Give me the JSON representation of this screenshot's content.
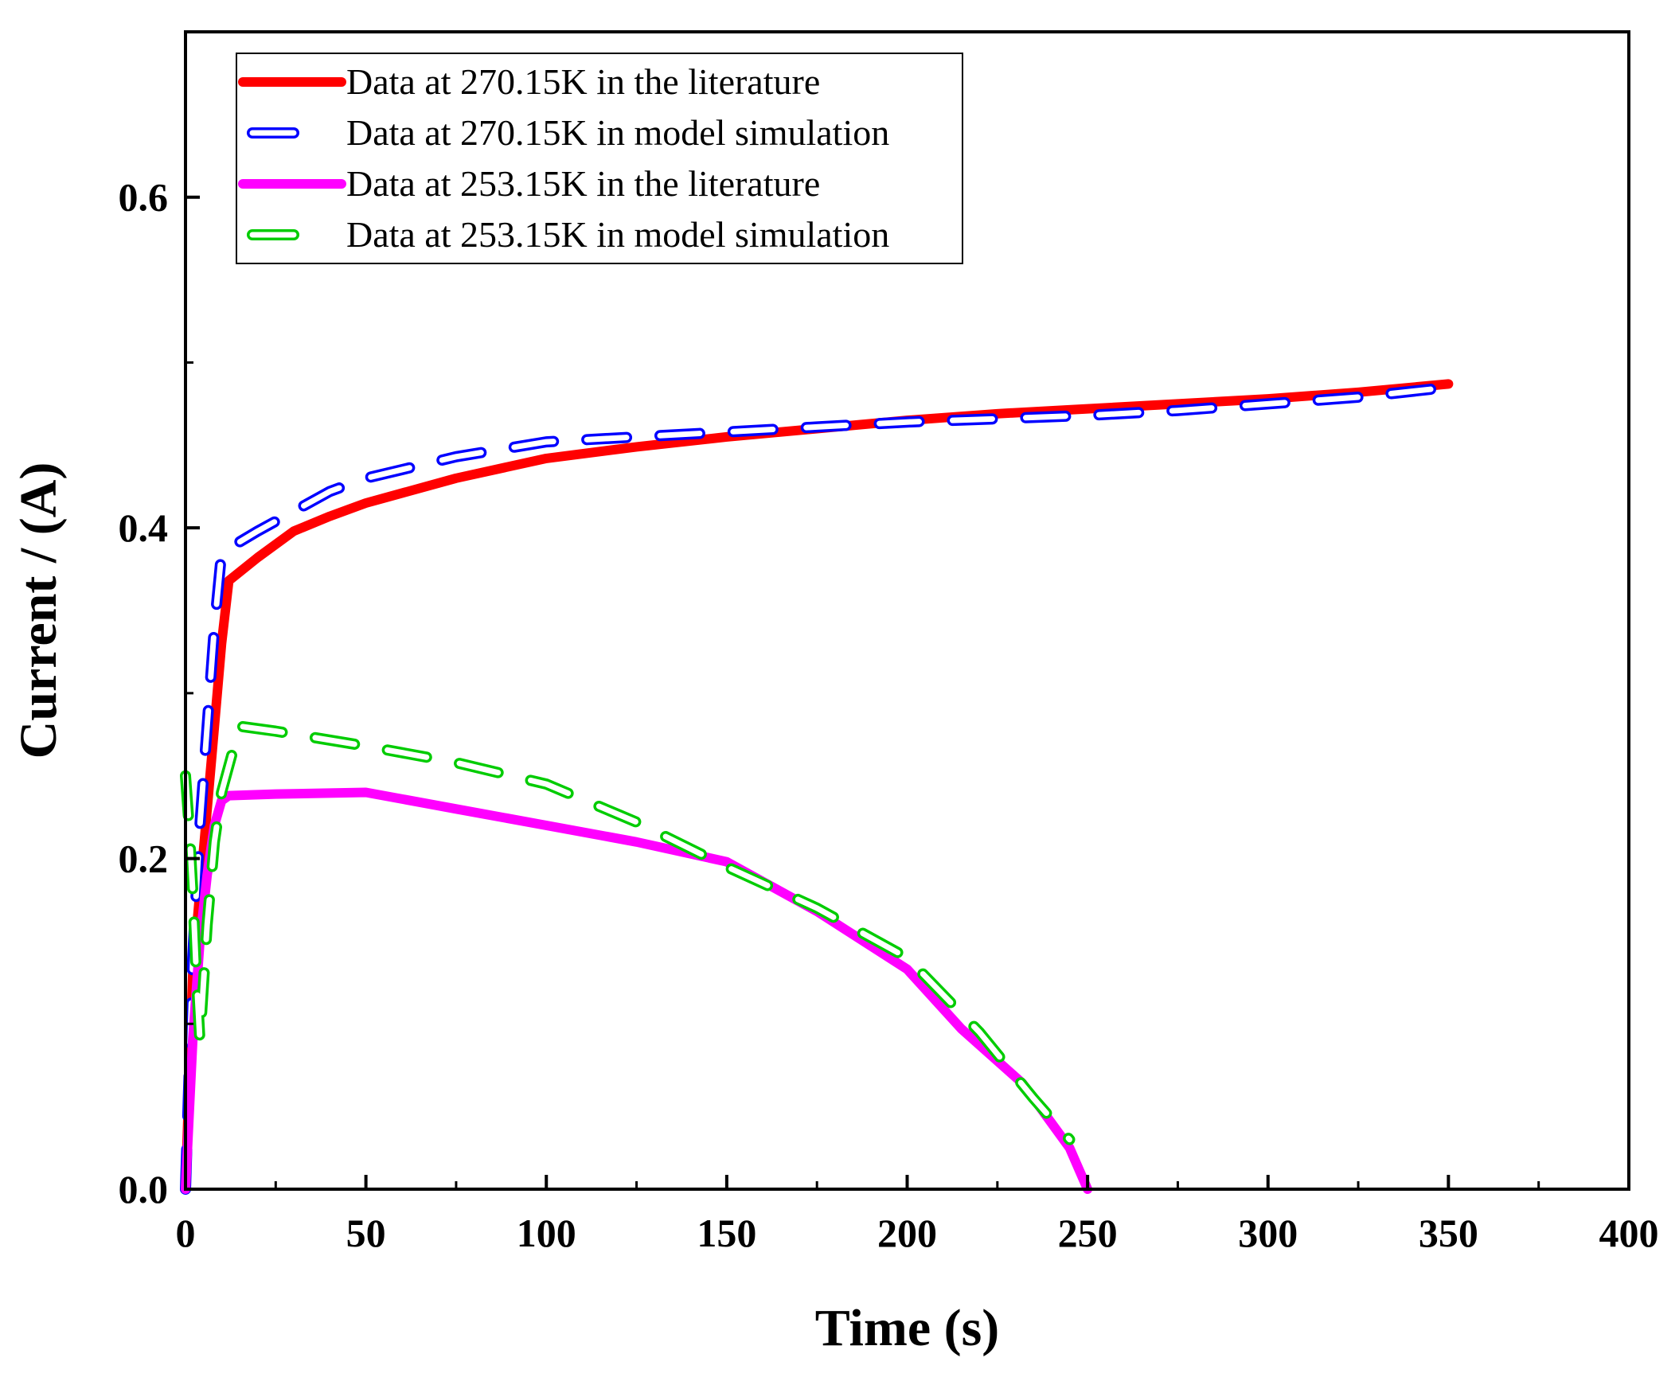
{
  "chart_data": {
    "type": "line",
    "title": "",
    "xlabel": "Time (s)",
    "ylabel": "Current / (A)",
    "xlim": [
      0,
      400
    ],
    "ylim": [
      0,
      0.7
    ],
    "xticks": [
      0,
      50,
      100,
      150,
      200,
      250,
      300,
      350,
      400
    ],
    "xtick_labels": [
      "0",
      "50",
      "100",
      "150",
      "200",
      "250",
      "300",
      "350",
      "400"
    ],
    "yticks": [
      0.0,
      0.2,
      0.4,
      0.6
    ],
    "ytick_labels": [
      "0.0",
      "0.2",
      "0.4",
      "0.6"
    ],
    "y_minor_ticks": [
      0.1,
      0.3,
      0.5
    ],
    "grid": false,
    "legend_position": "top-left",
    "series": [
      {
        "name": "Data at 270.15K in the literature",
        "color": "#ff0000",
        "style": "solid",
        "x": [
          0,
          2,
          4,
          6,
          8,
          10,
          12,
          20,
          30,
          40,
          50,
          75,
          100,
          125,
          150,
          175,
          200,
          225,
          250,
          275,
          300,
          325,
          350
        ],
        "y": [
          0.0,
          0.13,
          0.18,
          0.23,
          0.28,
          0.33,
          0.368,
          0.382,
          0.398,
          0.407,
          0.415,
          0.43,
          0.442,
          0.449,
          0.455,
          0.46,
          0.465,
          0.469,
          0.472,
          0.475,
          0.478,
          0.482,
          0.487
        ]
      },
      {
        "name": "Data at 270.15K in model simulation",
        "color": "#0000ff",
        "style": "dashed",
        "x": [
          0,
          2,
          4,
          6,
          8,
          10,
          20,
          30,
          40,
          50,
          75,
          100,
          125,
          150,
          175,
          200,
          225,
          250,
          275,
          300,
          325,
          350
        ],
        "y": [
          0.0,
          0.14,
          0.22,
          0.28,
          0.34,
          0.385,
          0.398,
          0.41,
          0.422,
          0.43,
          0.443,
          0.452,
          0.455,
          0.458,
          0.461,
          0.464,
          0.466,
          0.468,
          0.471,
          0.475,
          0.479,
          0.485
        ]
      },
      {
        "name": "Data at 253.15K in the literature",
        "color": "#ff00ff",
        "style": "solid",
        "x": [
          0,
          2,
          4,
          6,
          8,
          10,
          12,
          25,
          50,
          75,
          100,
          125,
          150,
          175,
          200,
          215,
          232,
          245,
          250
        ],
        "y": [
          0.0,
          0.09,
          0.15,
          0.19,
          0.22,
          0.235,
          0.238,
          0.239,
          0.24,
          0.23,
          0.22,
          0.21,
          0.198,
          0.168,
          0.133,
          0.097,
          0.064,
          0.025,
          0.0
        ]
      },
      {
        "name": "Data at 253.15K in model simulation",
        "color": "#00cc00",
        "style": "dashed",
        "x": [
          0,
          1,
          2,
          3,
          4,
          6,
          8,
          10,
          15,
          25,
          50,
          75,
          100,
          125,
          150,
          175,
          200,
          220,
          235,
          245
        ],
        "y": [
          0.25,
          0.22,
          0.18,
          0.13,
          0.09,
          0.16,
          0.21,
          0.24,
          0.28,
          0.277,
          0.268,
          0.258,
          0.245,
          0.222,
          0.195,
          0.17,
          0.14,
          0.095,
          0.055,
          0.03
        ]
      }
    ]
  }
}
